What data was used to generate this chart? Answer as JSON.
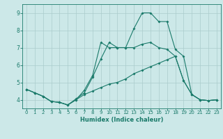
{
  "xlabel": "Humidex (Indice chaleur)",
  "bg_color": "#cce8e8",
  "line_color": "#1a7a6a",
  "grid_color": "#aacccc",
  "xlim": [
    -0.5,
    23.5
  ],
  "ylim": [
    3.5,
    9.5
  ],
  "xticks": [
    0,
    1,
    2,
    3,
    4,
    5,
    6,
    7,
    8,
    9,
    10,
    11,
    12,
    13,
    14,
    15,
    16,
    17,
    18,
    19,
    20,
    21,
    22,
    23
  ],
  "yticks": [
    4,
    5,
    6,
    7,
    8,
    9
  ],
  "line1_x": [
    0,
    1,
    2,
    3,
    4,
    5,
    6,
    7,
    8,
    9,
    10,
    11,
    12,
    13,
    14,
    15,
    16,
    17,
    18,
    19,
    20,
    21,
    22,
    23
  ],
  "line1_y": [
    4.6,
    4.4,
    4.2,
    3.9,
    3.85,
    3.7,
    4.0,
    4.55,
    5.4,
    7.3,
    7.0,
    7.0,
    7.0,
    8.1,
    9.0,
    9.0,
    8.5,
    8.5,
    6.9,
    6.5,
    4.3,
    4.0,
    3.95,
    4.0
  ],
  "line2_x": [
    0,
    1,
    2,
    3,
    4,
    5,
    6,
    7,
    8,
    9,
    10,
    11,
    12,
    13,
    14,
    15,
    16,
    17,
    18,
    19,
    20,
    21,
    22,
    23
  ],
  "line2_y": [
    4.6,
    4.4,
    4.2,
    3.9,
    3.85,
    3.7,
    4.05,
    4.4,
    5.3,
    6.35,
    7.3,
    7.0,
    7.0,
    7.0,
    7.2,
    7.3,
    7.0,
    6.9,
    6.5,
    5.1,
    4.3,
    4.0,
    3.95,
    4.0
  ],
  "line3_x": [
    0,
    1,
    2,
    3,
    4,
    5,
    6,
    7,
    8,
    9,
    10,
    11,
    12,
    13,
    14,
    15,
    16,
    17,
    18,
    19,
    20,
    21,
    22,
    23
  ],
  "line3_y": [
    4.6,
    4.4,
    4.2,
    3.9,
    3.85,
    3.7,
    4.0,
    4.3,
    4.5,
    4.7,
    4.9,
    5.0,
    5.2,
    5.5,
    5.7,
    5.9,
    6.1,
    6.3,
    6.5,
    5.1,
    4.3,
    4.0,
    3.95,
    4.0
  ],
  "marker_size": 2.0,
  "line_width": 0.8,
  "xlabel_fontsize": 6.0,
  "tick_fontsize_x": 5.0,
  "tick_fontsize_y": 5.5
}
